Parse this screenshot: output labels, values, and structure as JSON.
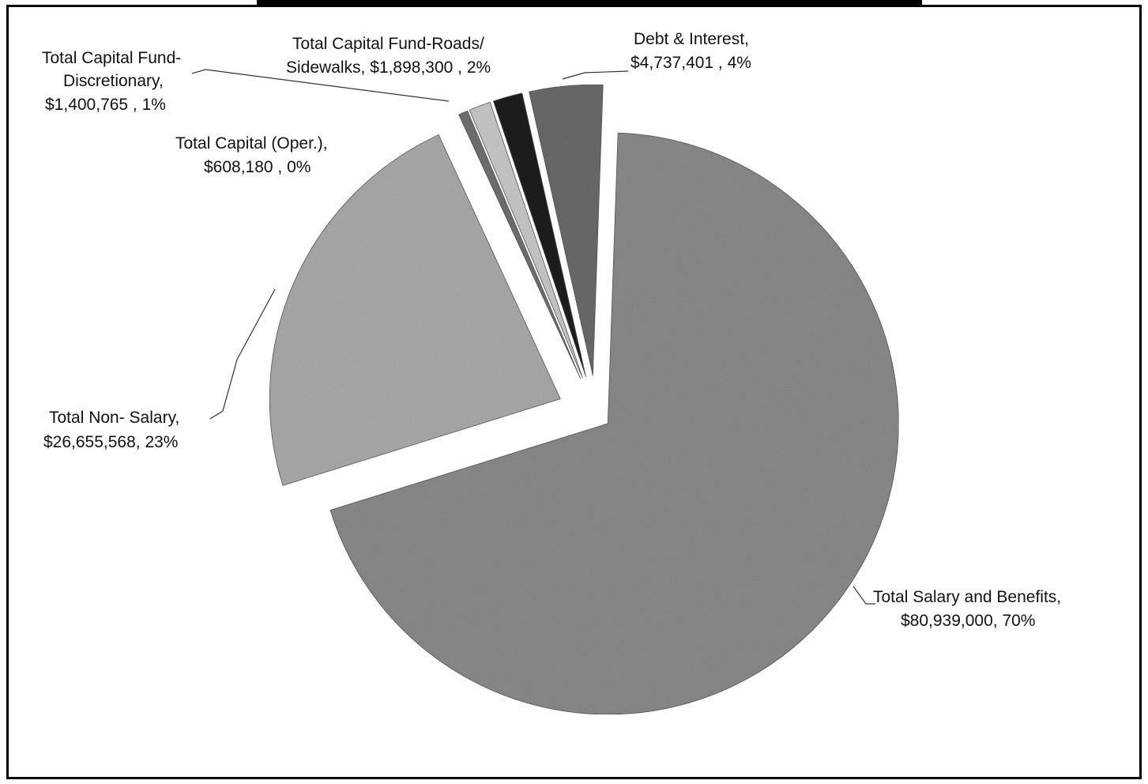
{
  "chart_data": {
    "type": "pie",
    "title": "",
    "slices": [
      {
        "name": "Total Salary and Benefits,",
        "value_label": "$80,939,000, 70%",
        "value": 80939000,
        "percent": 70,
        "color": "#8a8a8a"
      },
      {
        "name": "Total Non- Salary,",
        "value_label": "$26,655,568,  23%",
        "value": 26655568,
        "percent": 23,
        "color": "#aaaaaa"
      },
      {
        "name": "Total Capital (Oper.),",
        "value_label": "$608,180 , 0%",
        "value": 608180,
        "percent": 0,
        "color": "#707070"
      },
      {
        "name": "Total Capital Fund- Discretionary,",
        "value_label": "$1,400,765 , 1%",
        "value": 1400765,
        "percent": 1,
        "color": "#c8c8c8"
      },
      {
        "name": "Total Capital Fund-Roads/ Sidewalks,",
        "value_label": "$1,898,300 , 2%",
        "value": 1898300,
        "percent": 2,
        "color": "#1e1e1e"
      },
      {
        "name": "Debt & Interest,",
        "value_label": "$4,737,401 , 4%",
        "value": 4737401,
        "percent": 4,
        "color": "#6a6a6a"
      }
    ],
    "labels": {
      "salary": [
        "Total Salary and Benefits,",
        "$80,939,000, 70%"
      ],
      "nonsalary": [
        "Total Non- Salary,",
        "$26,655,568,  23%"
      ],
      "capoper": [
        "Total Capital (Oper.),",
        "$608,180 , 0%"
      ],
      "discretionary": [
        "Total Capital Fund-",
        "Discretionary,",
        "$1,400,765 , 1%"
      ],
      "roads": [
        "Total Capital Fund-Roads/",
        "Sidewalks,  $1,898,300 , 2%"
      ],
      "debt": [
        "Debt & Interest,",
        "$4,737,401 , 4%"
      ]
    }
  }
}
